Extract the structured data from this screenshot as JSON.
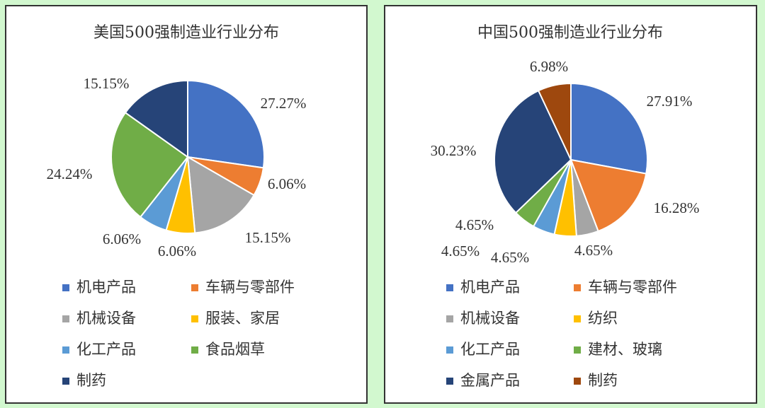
{
  "chart_data": [
    {
      "type": "pie",
      "title": "美国500强制造业行业分布",
      "categories": [
        "机电产品",
        "车辆与零部件",
        "机械设备",
        "服装、家居",
        "化工产品",
        "食品烟草",
        "制药"
      ],
      "values": [
        27.27,
        6.06,
        15.15,
        6.06,
        6.06,
        24.24,
        15.15
      ],
      "value_labels": [
        "27.27%",
        "6.06%",
        "15.15%",
        "6.06%",
        "6.06%",
        "24.24%",
        "15.15%"
      ],
      "colors": [
        "#4472c4",
        "#ed7d31",
        "#a5a5a5",
        "#ffc000",
        "#5b9bd5",
        "#70ad47",
        "#264478"
      ]
    },
    {
      "type": "pie",
      "title": "中国500强制造业行业分布",
      "categories": [
        "机电产品",
        "车辆与零部件",
        "机械设备",
        "纺织",
        "化工产品",
        "建材、玻璃",
        "金属产品",
        "制药"
      ],
      "values": [
        27.91,
        16.28,
        4.65,
        4.65,
        4.65,
        4.65,
        30.23,
        6.98
      ],
      "value_labels": [
        "27.91%",
        "16.28%",
        "4.65%",
        "4.65%",
        "4.65%",
        "4.65%",
        "30.23%",
        "6.98%"
      ],
      "colors": [
        "#4472c4",
        "#ed7d31",
        "#a5a5a5",
        "#ffc000",
        "#5b9bd5",
        "#70ad47",
        "#264478",
        "#9e480e"
      ]
    }
  ]
}
